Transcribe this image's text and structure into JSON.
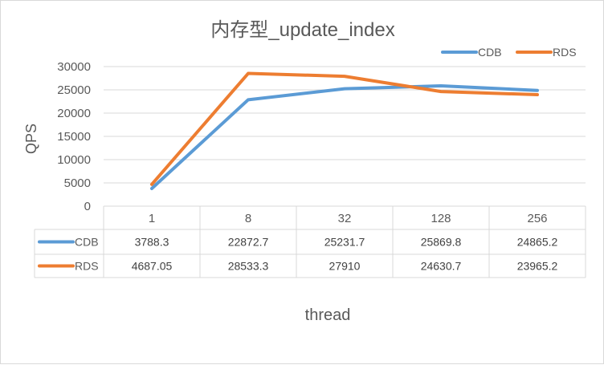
{
  "chart_data": {
    "type": "line",
    "title": "内存型_update_index",
    "xlabel": "thread",
    "ylabel": "QPS",
    "ylim": [
      0,
      30000
    ],
    "yticks": [
      "0",
      "5000",
      "10000",
      "15000",
      "20000",
      "25000",
      "30000"
    ],
    "grid": true,
    "legend_position": "top-right",
    "categories": [
      "1",
      "8",
      "32",
      "128",
      "256"
    ],
    "series": [
      {
        "name": "CDB",
        "color": "#5b9bd5",
        "values": [
          3788.3,
          22872.7,
          25231.7,
          25869.8,
          24865.2
        ],
        "labels": [
          "3788.3",
          "22872.7",
          "25231.7",
          "25869.8",
          "24865.2"
        ]
      },
      {
        "name": "RDS",
        "color": "#ed7d31",
        "values": [
          4687.05,
          28533.3,
          27910,
          24630.7,
          23965.2
        ],
        "labels": [
          "4687.05",
          "28533.3",
          "27910",
          "24630.7",
          "23965.2"
        ]
      }
    ]
  }
}
